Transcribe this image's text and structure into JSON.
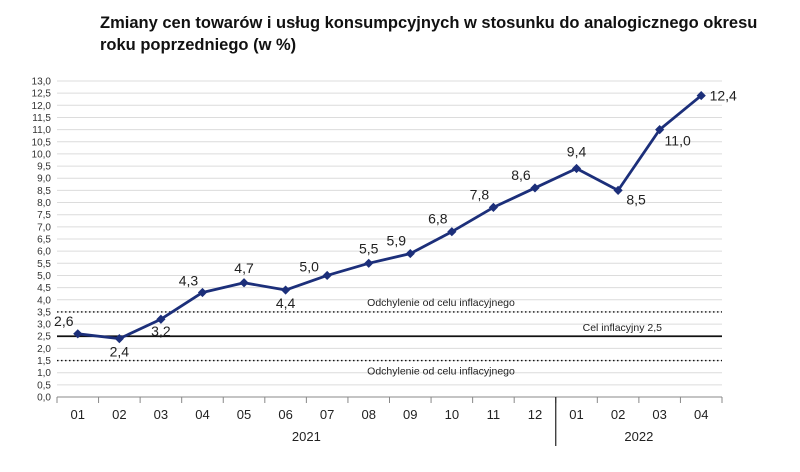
{
  "chart_data": {
    "type": "line",
    "title": "Zmiany cen towarów i usług konsumpcyjnych w stosunku do analogicznego okresu roku poprzedniego (w %)",
    "categories": [
      "01",
      "02",
      "03",
      "04",
      "05",
      "06",
      "07",
      "08",
      "09",
      "10",
      "11",
      "12",
      "01",
      "02",
      "03",
      "04"
    ],
    "year_groups": [
      {
        "label": "2021",
        "count": 12
      },
      {
        "label": "2022",
        "count": 4
      }
    ],
    "values": [
      2.6,
      2.4,
      3.2,
      4.3,
      4.7,
      4.4,
      5.0,
      5.5,
      5.9,
      6.8,
      7.8,
      8.6,
      9.4,
      8.5,
      11.0,
      12.4
    ],
    "value_labels": [
      "2,6",
      "2,4",
      "3,2",
      "4,3",
      "4,7",
      "4,4",
      "5,0",
      "5,5",
      "5,9",
      "6,8",
      "7,8",
      "8,6",
      "9,4",
      "8,5",
      "11,0",
      "12,4"
    ],
    "ylim": [
      0,
      13
    ],
    "ytick_step": 0.5,
    "yticks": [
      "0,0",
      "0,5",
      "1,0",
      "1,5",
      "2,0",
      "2,5",
      "3,0",
      "3,5",
      "4,0",
      "4,5",
      "5,0",
      "5,5",
      "6,0",
      "6,5",
      "7,0",
      "7,5",
      "8,0",
      "8,5",
      "9,0",
      "9,5",
      "10,0",
      "10,5",
      "11,0",
      "11,5",
      "12,0",
      "12,5",
      "13,0"
    ],
    "grid": true,
    "series_color": "#1c2f7a",
    "reference_lines": [
      {
        "value": 3.5,
        "style": "dotted",
        "label": "Odchylenie od celu inflacyjnego"
      },
      {
        "value": 2.5,
        "style": "solid",
        "label": "Cel inflacyjny 2,5"
      },
      {
        "value": 1.5,
        "style": "dotted",
        "label": "Odchylenie od celu inflacyjnego"
      }
    ]
  }
}
